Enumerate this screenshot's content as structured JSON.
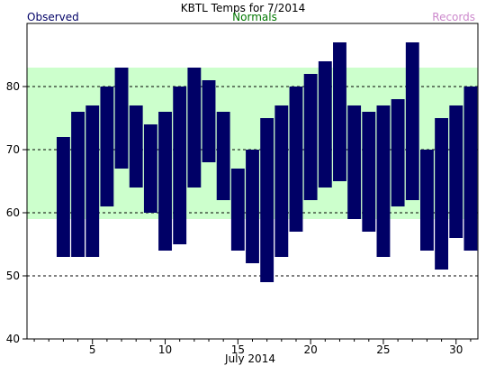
{
  "chart_data": {
    "type": "bar",
    "title": "KBTL Temps for 7/2014",
    "legend": {
      "observed": "Observed",
      "normals": "Normals",
      "records": "Records"
    },
    "xlabel": "July 2014",
    "x_ticks": [
      5,
      10,
      15,
      20,
      25,
      30
    ],
    "y_ticks": [
      40,
      50,
      60,
      70,
      80
    ],
    "xlim": [
      0.5,
      31.5
    ],
    "ylim": [
      40,
      90
    ],
    "grid": "horizontal dashed at 50, 60, 70, 80",
    "normals_band": {
      "low": 59,
      "high": 83
    },
    "series": [
      {
        "name": "Observed",
        "days": [
          3,
          4,
          5,
          6,
          7,
          8,
          9,
          10,
          11,
          12,
          13,
          14,
          15,
          16,
          17,
          18,
          19,
          20,
          21,
          22,
          23,
          24,
          25,
          26,
          27,
          28,
          29,
          30,
          31
        ],
        "high": [
          72,
          76,
          77,
          80,
          83,
          77,
          74,
          76,
          80,
          83,
          81,
          76,
          67,
          70,
          75,
          77,
          80,
          82,
          84,
          87,
          77,
          76,
          77,
          78,
          87,
          70,
          75,
          77,
          80
        ],
        "low": [
          53,
          53,
          53,
          61,
          67,
          64,
          60,
          54,
          55,
          64,
          68,
          62,
          54,
          52,
          49,
          53,
          57,
          62,
          64,
          65,
          59,
          57,
          53,
          61,
          62,
          54,
          51,
          56,
          54
        ]
      }
    ],
    "colors": {
      "observed": "#000066",
      "normals_fill": "#ccffcc",
      "normals_text": "#007700",
      "records_text": "#cc88cc",
      "title": "#000000"
    }
  }
}
